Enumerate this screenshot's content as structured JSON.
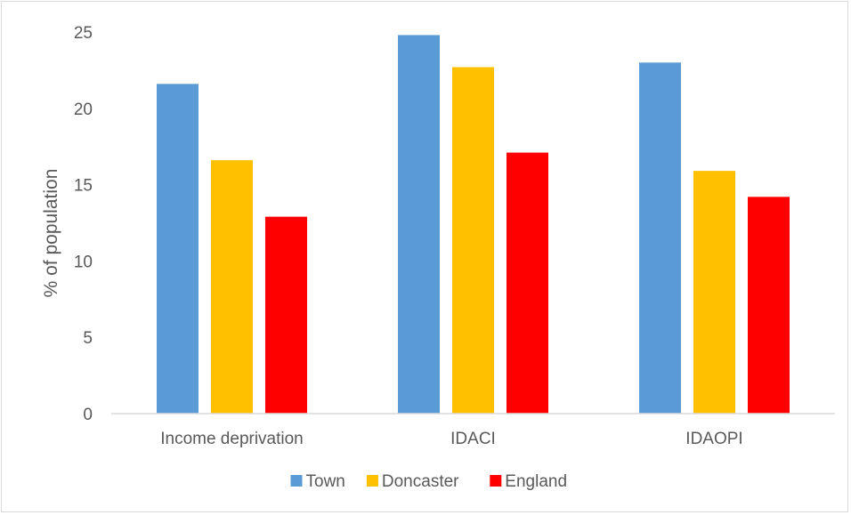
{
  "chart_data": {
    "type": "bar",
    "title": "",
    "xlabel": "",
    "ylabel": "% of population",
    "ylim": [
      0,
      25
    ],
    "yticks": [
      "0",
      "5",
      "10",
      "15",
      "20",
      "25"
    ],
    "categories": [
      "Income deprivation",
      "IDACI",
      "IDAOPI"
    ],
    "series": [
      {
        "name": "Town",
        "color": "#5b9bd5",
        "values": [
          21.6,
          24.8,
          23.0
        ]
      },
      {
        "name": "Doncaster",
        "color": "#ffc000",
        "values": [
          16.6,
          22.7,
          15.9
        ]
      },
      {
        "name": "England",
        "color": "#ff0000",
        "values": [
          12.9,
          17.1,
          14.2
        ]
      }
    ],
    "grid": false,
    "legend": "bottom"
  }
}
